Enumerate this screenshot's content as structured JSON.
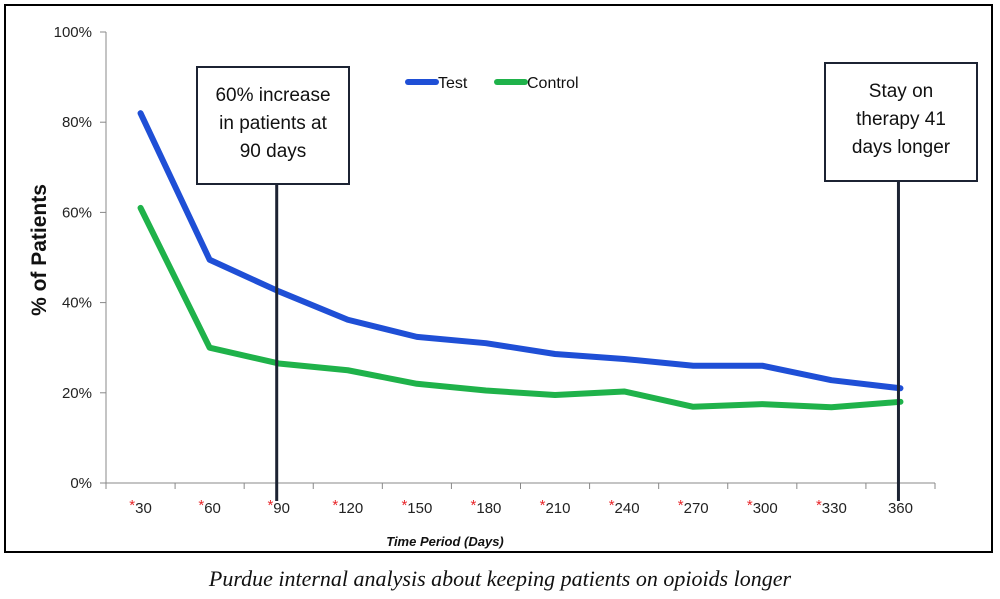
{
  "chart_data": {
    "type": "line",
    "categories": [
      "30",
      "60",
      "90",
      "120",
      "150",
      "180",
      "210",
      "240",
      "270",
      "300",
      "330",
      "360"
    ],
    "starred": [
      true,
      true,
      true,
      true,
      true,
      true,
      true,
      true,
      true,
      true,
      true,
      false
    ],
    "series": [
      {
        "name": "Test",
        "color": "#1f4fd6",
        "values": [
          82,
          49.5,
          42.5,
          36.2,
          32.4,
          31,
          28.6,
          27.5,
          26,
          26,
          22.8,
          21
        ]
      },
      {
        "name": "Control",
        "color": "#1fb24a",
        "values": [
          61,
          30,
          26.5,
          25,
          22,
          20.5,
          19.5,
          20.3,
          16.9,
          17.5,
          16.8,
          18
        ]
      }
    ],
    "ylim": [
      0,
      100
    ],
    "yticks": [
      "0%",
      "20%",
      "40%",
      "60%",
      "80%",
      "100%"
    ],
    "ylabel": "% of Patients",
    "xlabel": "Time Period (Days)",
    "star_symbol": "*",
    "legend_position": "top",
    "annotations": [
      {
        "lines": [
          "60% increase",
          "in patients at",
          "90 days"
        ],
        "x_category": "90"
      },
      {
        "lines": [
          "Stay on",
          "therapy 41",
          "days longer"
        ],
        "x_category": "360"
      }
    ]
  },
  "caption": "Purdue internal analysis about keeping patients on opioids longer"
}
